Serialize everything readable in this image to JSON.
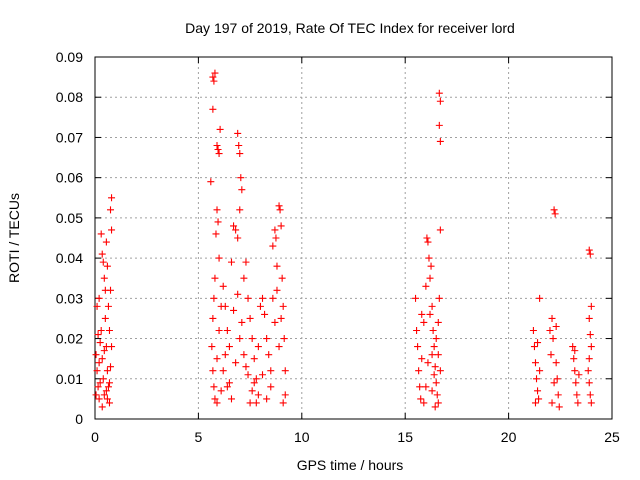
{
  "chart_data": {
    "type": "scatter",
    "title": "Day 197 of 2019, Rate Of TEC Index for receiver lord",
    "xlabel": "GPS time / hours",
    "ylabel": "ROTI / TECUs",
    "xlim": [
      0,
      25
    ],
    "ylim": [
      0,
      0.09
    ],
    "xticks": [
      0,
      5,
      10,
      15,
      20,
      25
    ],
    "yticks": [
      0,
      0.01,
      0.02,
      0.03,
      0.04,
      0.05,
      0.06,
      0.07,
      0.08,
      0.09
    ],
    "xtick_labels": [
      "0",
      "5",
      "10",
      "15",
      "20",
      "25"
    ],
    "ytick_labels": [
      "0",
      "0.01",
      "0.02",
      "0.03",
      "0.04",
      "0.05",
      "0.06",
      "0.07",
      "0.08",
      "0.09"
    ],
    "grid": true,
    "marker": "+",
    "color": "#ff0000",
    "series": [
      {
        "values": [
          [
            0.05,
            0.016
          ],
          [
            0.1,
            0.012
          ],
          [
            0.15,
            0.008
          ],
          [
            0.2,
            0.005
          ],
          [
            0.1,
            0.028
          ],
          [
            0.2,
            0.03
          ],
          [
            0.3,
            0.022
          ],
          [
            0.35,
            0.015
          ],
          [
            0.4,
            0.01
          ],
          [
            0.45,
            0.006
          ],
          [
            0.3,
            0.046
          ],
          [
            0.35,
            0.041
          ],
          [
            0.4,
            0.039
          ],
          [
            0.45,
            0.035
          ],
          [
            0.5,
            0.025
          ],
          [
            0.55,
            0.018
          ],
          [
            0.6,
            0.012
          ],
          [
            0.65,
            0.008
          ],
          [
            0.7,
            0.004
          ],
          [
            0.2,
            0.014
          ],
          [
            0.25,
            0.009
          ],
          [
            0.35,
            0.003
          ],
          [
            0.5,
            0.032
          ],
          [
            0.55,
            0.044
          ],
          [
            0.6,
            0.038
          ],
          [
            0.65,
            0.028
          ],
          [
            0.7,
            0.022
          ],
          [
            0.75,
            0.052
          ],
          [
            0.8,
            0.055
          ],
          [
            0.8,
            0.047
          ],
          [
            0.75,
            0.032
          ],
          [
            0.8,
            0.018
          ],
          [
            0.75,
            0.013
          ],
          [
            0.7,
            0.009
          ],
          [
            0.6,
            0.005
          ],
          [
            0.15,
            0.021
          ],
          [
            0.05,
            0.006
          ],
          [
            0.25,
            0.019
          ],
          [
            0.45,
            0.017
          ],
          [
            0.55,
            0.007
          ],
          [
            5.6,
            0.059
          ],
          [
            5.7,
            0.085
          ],
          [
            5.75,
            0.084
          ],
          [
            5.8,
            0.086
          ],
          [
            5.7,
            0.077
          ],
          [
            5.9,
            0.068
          ],
          [
            5.95,
            0.067
          ],
          [
            6.0,
            0.066
          ],
          [
            6.05,
            0.072
          ],
          [
            5.85,
            0.046
          ],
          [
            5.9,
            0.052
          ],
          [
            5.95,
            0.049
          ],
          [
            6.0,
            0.04
          ],
          [
            5.8,
            0.035
          ],
          [
            5.75,
            0.03
          ],
          [
            5.7,
            0.025
          ],
          [
            5.65,
            0.018
          ],
          [
            5.7,
            0.012
          ],
          [
            5.75,
            0.008
          ],
          [
            5.8,
            0.005
          ],
          [
            5.9,
            0.015
          ],
          [
            6.0,
            0.022
          ],
          [
            6.1,
            0.028
          ],
          [
            6.2,
            0.033
          ],
          [
            6.3,
            0.028
          ],
          [
            6.4,
            0.022
          ],
          [
            6.5,
            0.018
          ],
          [
            6.6,
            0.039
          ],
          [
            6.7,
            0.048
          ],
          [
            6.8,
            0.047
          ],
          [
            6.9,
            0.071
          ],
          [
            6.95,
            0.068
          ],
          [
            7.0,
            0.066
          ],
          [
            7.05,
            0.06
          ],
          [
            7.1,
            0.057
          ],
          [
            7.0,
            0.052
          ],
          [
            6.9,
            0.045
          ],
          [
            7.2,
            0.035
          ],
          [
            7.3,
            0.039
          ],
          [
            7.4,
            0.03
          ],
          [
            7.5,
            0.025
          ],
          [
            7.6,
            0.02
          ],
          [
            7.7,
            0.015
          ],
          [
            7.8,
            0.01
          ],
          [
            7.9,
            0.006
          ],
          [
            6.2,
            0.012
          ],
          [
            6.4,
            0.008
          ],
          [
            6.6,
            0.005
          ],
          [
            6.8,
            0.014
          ],
          [
            7.0,
            0.02
          ],
          [
            7.2,
            0.016
          ],
          [
            7.4,
            0.011
          ],
          [
            7.6,
            0.007
          ],
          [
            7.8,
            0.004
          ],
          [
            8.0,
            0.028
          ],
          [
            8.1,
            0.03
          ],
          [
            8.2,
            0.026
          ],
          [
            8.3,
            0.02
          ],
          [
            8.4,
            0.016
          ],
          [
            8.5,
            0.012
          ],
          [
            8.6,
            0.043
          ],
          [
            8.7,
            0.047
          ],
          [
            8.75,
            0.045
          ],
          [
            8.8,
            0.038
          ],
          [
            8.9,
            0.053
          ],
          [
            8.95,
            0.052
          ],
          [
            9.0,
            0.048
          ],
          [
            9.05,
            0.035
          ],
          [
            9.1,
            0.028
          ],
          [
            9.15,
            0.02
          ],
          [
            9.2,
            0.012
          ],
          [
            9.2,
            0.006
          ],
          [
            9.1,
            0.004
          ],
          [
            8.9,
            0.018
          ],
          [
            8.7,
            0.024
          ],
          [
            8.5,
            0.008
          ],
          [
            8.3,
            0.005
          ],
          [
            8.1,
            0.011
          ],
          [
            7.9,
            0.018
          ],
          [
            7.7,
            0.009
          ],
          [
            7.5,
            0.004
          ],
          [
            7.3,
            0.013
          ],
          [
            7.1,
            0.024
          ],
          [
            6.9,
            0.031
          ],
          [
            6.7,
            0.027
          ],
          [
            6.5,
            0.009
          ],
          [
            6.3,
            0.016
          ],
          [
            6.1,
            0.007
          ],
          [
            5.9,
            0.004
          ],
          [
            8.8,
            0.032
          ],
          [
            9.0,
            0.025
          ],
          [
            8.6,
            0.03
          ],
          [
            15.5,
            0.03
          ],
          [
            15.55,
            0.022
          ],
          [
            15.6,
            0.018
          ],
          [
            15.65,
            0.012
          ],
          [
            15.7,
            0.008
          ],
          [
            15.75,
            0.005
          ],
          [
            15.8,
            0.015
          ],
          [
            15.9,
            0.024
          ],
          [
            16.0,
            0.033
          ],
          [
            16.05,
            0.045
          ],
          [
            16.1,
            0.044
          ],
          [
            16.15,
            0.04
          ],
          [
            16.2,
            0.035
          ],
          [
            16.25,
            0.038
          ],
          [
            16.3,
            0.028
          ],
          [
            16.35,
            0.022
          ],
          [
            16.4,
            0.018
          ],
          [
            16.45,
            0.013
          ],
          [
            16.5,
            0.009
          ],
          [
            16.55,
            0.006
          ],
          [
            16.6,
            0.004
          ],
          [
            16.65,
            0.081
          ],
          [
            16.7,
            0.079
          ],
          [
            16.65,
            0.073
          ],
          [
            16.7,
            0.069
          ],
          [
            16.7,
            0.047
          ],
          [
            16.65,
            0.03
          ],
          [
            16.6,
            0.024
          ],
          [
            16.5,
            0.02
          ],
          [
            16.4,
            0.011
          ],
          [
            16.3,
            0.007
          ],
          [
            16.2,
            0.026
          ],
          [
            16.1,
            0.014
          ],
          [
            16.0,
            0.008
          ],
          [
            15.9,
            0.004
          ],
          [
            16.6,
            0.016
          ],
          [
            16.7,
            0.012
          ],
          [
            16.3,
            0.016
          ],
          [
            15.8,
            0.026
          ],
          [
            16.45,
            0.003
          ],
          [
            21.2,
            0.022
          ],
          [
            21.25,
            0.018
          ],
          [
            21.3,
            0.014
          ],
          [
            21.35,
            0.01
          ],
          [
            21.4,
            0.007
          ],
          [
            21.45,
            0.005
          ],
          [
            21.5,
            0.03
          ],
          [
            21.3,
            0.004
          ],
          [
            21.4,
            0.019
          ],
          [
            21.5,
            0.012
          ],
          [
            22.0,
            0.022
          ],
          [
            22.05,
            0.016
          ],
          [
            22.1,
            0.025
          ],
          [
            22.15,
            0.02
          ],
          [
            22.2,
            0.052
          ],
          [
            22.25,
            0.051
          ],
          [
            22.3,
            0.014
          ],
          [
            22.35,
            0.01
          ],
          [
            22.4,
            0.006
          ],
          [
            22.45,
            0.003
          ],
          [
            22.2,
            0.009
          ],
          [
            22.1,
            0.004
          ],
          [
            22.3,
            0.023
          ],
          [
            23.1,
            0.018
          ],
          [
            23.15,
            0.015
          ],
          [
            23.2,
            0.012
          ],
          [
            23.25,
            0.009
          ],
          [
            23.3,
            0.006
          ],
          [
            23.35,
            0.004
          ],
          [
            23.2,
            0.017
          ],
          [
            23.4,
            0.011
          ],
          [
            23.9,
            0.042
          ],
          [
            23.95,
            0.041
          ],
          [
            24.0,
            0.028
          ],
          [
            23.9,
            0.025
          ],
          [
            23.95,
            0.021
          ],
          [
            24.0,
            0.018
          ],
          [
            23.85,
            0.012
          ],
          [
            23.9,
            0.009
          ],
          [
            23.95,
            0.006
          ],
          [
            24.0,
            0.004
          ],
          [
            23.9,
            0.015
          ]
        ]
      }
    ]
  }
}
